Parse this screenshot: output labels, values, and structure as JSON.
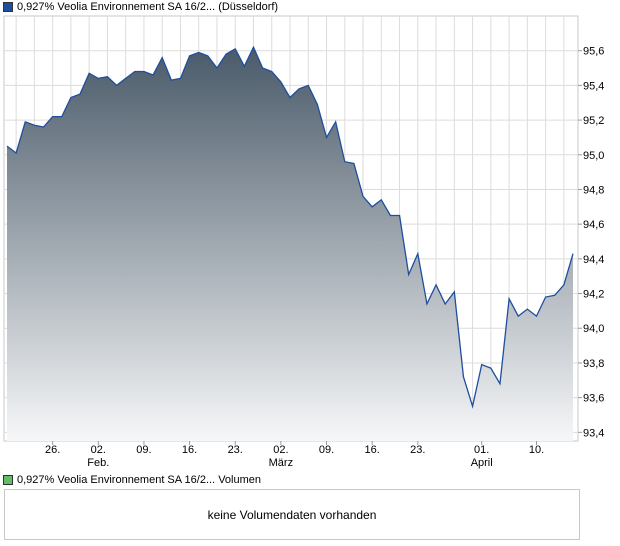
{
  "legend": {
    "price_label": "0,927% Veolia Environnement SA 16/2... (Düsseldorf)",
    "volume_label": "0,927% Veolia Environnement SA 16/2... Volumen",
    "price_color": "#1f4e9c",
    "volume_color": "#66bb66"
  },
  "volume_panel": {
    "message": "keine Volumendaten vorhanden"
  },
  "chart_data": {
    "type": "area",
    "title": "",
    "xlabel": "",
    "ylabel": "",
    "ylim": [
      93.35,
      95.8
    ],
    "y_ticks": [
      93.4,
      93.6,
      93.8,
      94.0,
      94.2,
      94.4,
      94.6,
      94.8,
      95.0,
      95.2,
      95.4,
      95.6
    ],
    "y_tick_labels": [
      "93,4",
      "93,6",
      "93,8",
      "94,0",
      "94,2",
      "94,4",
      "94,6",
      "94,8",
      "95,0",
      "95,2",
      "95,4",
      "95,6"
    ],
    "x_ticks": [
      {
        "label": "26.",
        "sub": "",
        "index": 5
      },
      {
        "label": "02.",
        "sub": "Feb.",
        "index": 10
      },
      {
        "label": "09.",
        "sub": "",
        "index": 15
      },
      {
        "label": "16.",
        "sub": "",
        "index": 20
      },
      {
        "label": "23.",
        "sub": "",
        "index": 25
      },
      {
        "label": "02.",
        "sub": "März",
        "index": 30
      },
      {
        "label": "09.",
        "sub": "",
        "index": 35
      },
      {
        "label": "16.",
        "sub": "",
        "index": 40
      },
      {
        "label": "23.",
        "sub": "",
        "index": 45
      },
      {
        "label": "01.",
        "sub": "April",
        "index": 52
      },
      {
        "label": "10.",
        "sub": "",
        "index": 58
      }
    ],
    "grid": true,
    "series": [
      {
        "color": "#1f4e9c",
        "fill_top": "#4a5a69",
        "fill_bottom": "#f6f7f8",
        "values": [
          95.05,
          95.01,
          95.19,
          95.17,
          95.16,
          95.22,
          95.22,
          95.33,
          95.35,
          95.47,
          95.44,
          95.45,
          95.4,
          95.44,
          95.48,
          95.48,
          95.46,
          95.56,
          95.43,
          95.44,
          95.57,
          95.59,
          95.57,
          95.5,
          95.58,
          95.61,
          95.51,
          95.62,
          95.5,
          95.48,
          95.42,
          95.33,
          95.38,
          95.4,
          95.29,
          95.1,
          95.19,
          94.96,
          94.95,
          94.76,
          94.7,
          94.74,
          94.65,
          94.65,
          94.31,
          94.43,
          94.14,
          94.25,
          94.14,
          94.21,
          93.72,
          93.55,
          93.79,
          93.77,
          93.68,
          94.17,
          94.07,
          94.11,
          94.07,
          94.18,
          94.19,
          94.25,
          94.43
        ]
      }
    ]
  }
}
